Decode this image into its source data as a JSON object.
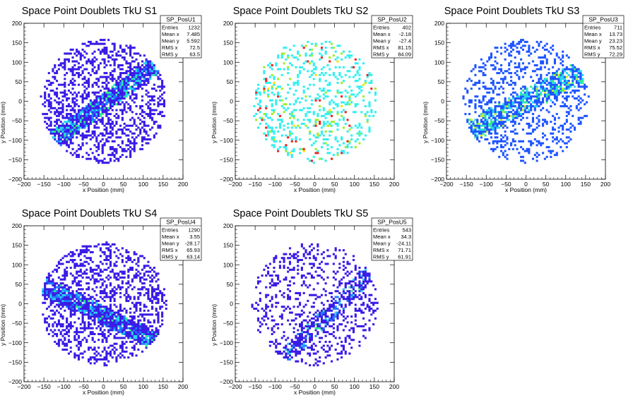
{
  "chart_data": [
    {
      "type": "heatmap",
      "title": "Space Point Doublets TkU S1",
      "xlabel": "x Position (mm)",
      "ylabel": "y Position (mm)",
      "xlim": [
        -200,
        200
      ],
      "ylim": [
        -200,
        200
      ],
      "xticks": [
        -200,
        -150,
        -100,
        -50,
        0,
        50,
        100,
        150,
        200
      ],
      "yticks": [
        -200,
        -150,
        -100,
        -50,
        0,
        50,
        100,
        150,
        200
      ],
      "stats": {
        "name": "SP_PosU1",
        "rows": [
          [
            "Entries",
            "1232"
          ],
          [
            "Mean x",
            "7.485"
          ],
          [
            "Mean y",
            "5.592"
          ],
          [
            "RMS x",
            "72.5"
          ],
          [
            "RMS y",
            "63.5"
          ]
        ]
      },
      "mean_x": 7.485,
      "mean_y": 5.592,
      "rms_x": 72.5,
      "rms_y": 63.5,
      "band": {
        "slope": 0.75,
        "intercept": -5,
        "width": 22
      },
      "occupancy": 0.62,
      "palette": [
        "#3a1ce6",
        "#1f7fff",
        "#2ad6f0",
        "#33ee88"
      ],
      "hot_fraction": [
        0.62,
        0.2,
        0.14,
        0.04
      ]
    },
    {
      "type": "heatmap",
      "title": "Space Point Doublets TkU S2",
      "xlabel": "x Position (mm)",
      "ylabel": "y Position (mm)",
      "xlim": [
        -200,
        200
      ],
      "ylim": [
        -200,
        200
      ],
      "xticks": [
        -200,
        -150,
        -100,
        -50,
        0,
        50,
        100,
        150,
        200
      ],
      "yticks": [
        -200,
        -150,
        -100,
        -50,
        0,
        50,
        100,
        150,
        200
      ],
      "stats": {
        "name": "SP_PosU2",
        "rows": [
          [
            "Entries",
            "402"
          ],
          [
            "Mean x",
            "-2.18"
          ],
          [
            "Mean y",
            "-27.4"
          ],
          [
            "RMS x",
            "81.15"
          ],
          [
            "RMS y",
            "84.09"
          ]
        ]
      },
      "mean_x": -2.18,
      "mean_y": -27.4,
      "rms_x": 81.15,
      "rms_y": 84.09,
      "band": null,
      "occupancy": 0.36,
      "palette": [
        "#33f0f0",
        "#9ff028",
        "#ee2222",
        "#ffe000"
      ],
      "hot_fraction": [
        0.85,
        0.08,
        0.05,
        0.02
      ]
    },
    {
      "type": "heatmap",
      "title": "Space Point Doublets TkU S3",
      "xlabel": "x Position (mm)",
      "ylabel": "y Position (mm)",
      "xlim": [
        -200,
        200
      ],
      "ylim": [
        -200,
        200
      ],
      "xticks": [
        -200,
        -150,
        -100,
        -50,
        0,
        50,
        100,
        150,
        200
      ],
      "yticks": [
        -200,
        -150,
        -100,
        -50,
        0,
        50,
        100,
        150,
        200
      ],
      "stats": {
        "name": "SP_PosU3",
        "rows": [
          [
            "Entries",
            "711"
          ],
          [
            "Mean x",
            "13.73"
          ],
          [
            "Mean y",
            "23.23"
          ],
          [
            "RMS x",
            "75.52"
          ],
          [
            "RMS y",
            "72.29"
          ]
        ]
      },
      "mean_x": 13.73,
      "mean_y": 23.23,
      "rms_x": 75.52,
      "rms_y": 72.29,
      "band": {
        "slope": 0.55,
        "intercept": 0,
        "width": 28
      },
      "occupancy": 0.42,
      "palette": [
        "#1f55ff",
        "#2ad6f0",
        "#33ee88",
        "#ccee22"
      ],
      "hot_fraction": [
        0.6,
        0.25,
        0.1,
        0.05
      ]
    },
    {
      "type": "heatmap",
      "title": "Space Point Doublets TkU S4",
      "xlabel": "x Position (mm)",
      "ylabel": "y Position (mm)",
      "xlim": [
        -200,
        200
      ],
      "ylim": [
        -200,
        200
      ],
      "xticks": [
        -200,
        -150,
        -100,
        -50,
        0,
        50,
        100,
        150,
        200
      ],
      "yticks": [
        -200,
        -150,
        -100,
        -50,
        0,
        50,
        100,
        150,
        200
      ],
      "stats": {
        "name": "SP_PosU4",
        "rows": [
          [
            "Entries",
            "1290"
          ],
          [
            "Mean x",
            "3.55"
          ],
          [
            "Mean y",
            "-28.17"
          ],
          [
            "RMS x",
            "65.93"
          ],
          [
            "RMS y",
            "63.14"
          ]
        ]
      },
      "mean_x": 3.55,
      "mean_y": -28.17,
      "rms_x": 65.93,
      "rms_y": 63.14,
      "band": {
        "slope": -0.5,
        "intercept": -30,
        "width": 22
      },
      "occupancy": 0.62,
      "palette": [
        "#3a1ce6",
        "#1f7fff",
        "#2ad6f0",
        "#33ee88"
      ],
      "hot_fraction": [
        0.62,
        0.2,
        0.14,
        0.04
      ]
    },
    {
      "type": "heatmap",
      "title": "Space Point Doublets TkU S5",
      "xlabel": "x Position (mm)",
      "ylabel": "y Position (mm)",
      "xlim": [
        -200,
        200
      ],
      "ylim": [
        -200,
        200
      ],
      "xticks": [
        -200,
        -150,
        -100,
        -50,
        0,
        50,
        100,
        150,
        200
      ],
      "yticks": [
        -200,
        -150,
        -100,
        -50,
        0,
        50,
        100,
        150,
        200
      ],
      "stats": {
        "name": "SP_PosU5",
        "rows": [
          [
            "Entries",
            "543"
          ],
          [
            "Mean x",
            "34.3"
          ],
          [
            "Mean y",
            "-24.11"
          ],
          [
            "RMS x",
            "71.71"
          ],
          [
            "RMS y",
            "61.91"
          ]
        ]
      },
      "mean_x": 34.3,
      "mean_y": -24.11,
      "rms_x": 71.71,
      "rms_y": 61.91,
      "band": {
        "slope": 1.0,
        "intercept": -60,
        "width": 20
      },
      "occupancy": 0.34,
      "palette": [
        "#3a1ce6",
        "#1f7fff",
        "#2ad6f0",
        "#33ee88"
      ],
      "hot_fraction": [
        0.72,
        0.16,
        0.09,
        0.03
      ]
    }
  ]
}
